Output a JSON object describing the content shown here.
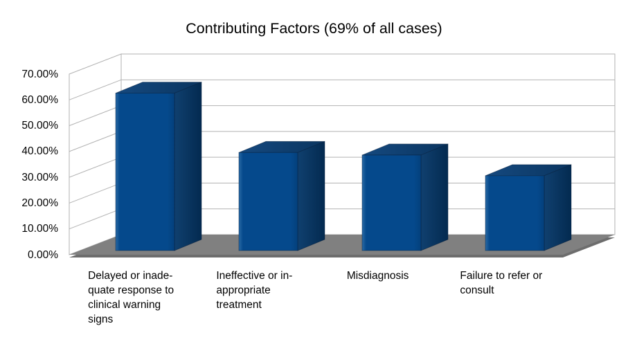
{
  "title": "Contributing Factors (69% of all cases)",
  "chart_data": {
    "type": "bar",
    "projection": "3d",
    "title": "Contributing Factors (69% of all cases)",
    "categories": [
      "Delayed or inadequate response to clinical warning signs",
      "Ineffective or inappropriate treatment",
      "Misdiagnosis",
      "Failure to refer or consult"
    ],
    "display_labels": [
      "Delayed or inade-\nquate response to\nclinical warning\nsigns",
      "Ineffective or in-\nappropriate\ntreatment",
      "Misdiagnosis",
      "Failure to refer or\nconsult"
    ],
    "values": [
      61,
      38,
      37,
      29
    ],
    "unit": "%",
    "ylim": [
      0,
      70
    ],
    "y_tick_step": 10,
    "y_ticks": [
      "70.00%",
      "60.00%",
      "50.00%",
      "40.00%",
      "30.00%",
      "20.00%",
      "10.00%",
      "0.00%"
    ],
    "grid": true,
    "legend": "none",
    "colors": {
      "bar_front": "#05498c",
      "bar_front_edge": "#2a6aa5",
      "bar_top_from": "#15497f",
      "bar_top_to": "#0a3560",
      "bar_side_from": "#10406f",
      "bar_side_to": "#032a50",
      "floor": "#808080",
      "floor_edge": "#6d6d6d",
      "wall": "#ffffff",
      "wall_border": "#b2b2b2",
      "gridline": "#b2b2b2",
      "text": "#000000",
      "background": "#ffffff"
    }
  }
}
